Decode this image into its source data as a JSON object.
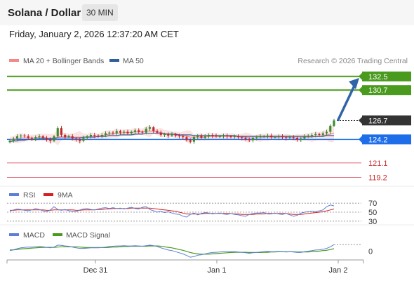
{
  "header": {
    "title": "Solana / Dollar",
    "interval": "30 MIN"
  },
  "timestamp": "Friday, January 2, 2026 12:37:20 AM CET",
  "legend": {
    "ma20": {
      "label": "MA 20 + Bollinger Bands",
      "color": "#f08a8a"
    },
    "ma50": {
      "label": "MA 50",
      "color": "#2f5e9e"
    }
  },
  "copyright": "Research © 2026 Trading Central",
  "colors": {
    "up": "#3a8a30",
    "down": "#c0282c",
    "resistance": "#4a9a1e",
    "support": "#e06b7a",
    "pivot": "#1d6ee8",
    "current": "#333333",
    "arrow": "#3064a8",
    "rsi": "#5b7fd6",
    "rsi_ma": "#d62020",
    "macd": "#5b7fd6",
    "macd_signal": "#4a9a1e"
  },
  "chart_data": [
    {
      "type": "candlestick",
      "ylim": [
        118.5,
        133.5
      ],
      "x_axis": {
        "labels": [
          "Dec 31",
          "Jan 1",
          "Jan 2"
        ]
      },
      "levels": {
        "resistance": [
          132.5,
          130.7
        ],
        "pivot": 124.2,
        "current": 126.7,
        "support": [
          121.1,
          119.2
        ]
      },
      "level_labels": {
        "r1": "132.5",
        "r2": "130.7",
        "pivot": "124.2",
        "current": "126.7",
        "s1": "121.1",
        "s2": "119.2"
      },
      "arrow_target": 132.3,
      "close": [
        124.0,
        124.3,
        124.6,
        124.7,
        124.6,
        124.4,
        124.3,
        124.5,
        124.6,
        124.4,
        124.2,
        124.0,
        124.6,
        125.7,
        124.8,
        124.5,
        124.6,
        124.3,
        124.2,
        124.0,
        124.4,
        124.6,
        124.8,
        124.7,
        124.6,
        124.8,
        125.0,
        125.1,
        125.0,
        125.3,
        125.1,
        125.2,
        125.0,
        125.2,
        125.4,
        125.2,
        125.1,
        125.6,
        125.8,
        125.3,
        125.1,
        124.8,
        124.9,
        124.7,
        124.9,
        124.7,
        124.6,
        124.5,
        124.1,
        123.9,
        124.5,
        124.7,
        124.4,
        124.6,
        124.8,
        124.7,
        124.6,
        124.6,
        124.7,
        124.6,
        124.5,
        124.6,
        124.5,
        124.4,
        124.2,
        124.1,
        124.4,
        124.5,
        124.6,
        124.6,
        124.7,
        124.5,
        124.5,
        124.6,
        124.5,
        124.4,
        124.5,
        124.4,
        124.2,
        124.3,
        124.6,
        124.7,
        124.8,
        124.9,
        124.8,
        125.0,
        125.2,
        126.0,
        126.7
      ],
      "ma20": [
        124.1,
        124.2,
        124.3,
        124.4,
        124.4,
        124.4,
        124.4,
        124.4,
        124.5,
        124.5,
        124.4,
        124.3,
        124.4,
        124.5,
        124.6,
        124.6,
        124.6,
        124.5,
        124.5,
        124.5,
        124.5,
        124.5,
        124.6,
        124.6,
        124.6,
        124.7,
        124.8,
        124.9,
        124.9,
        125.0,
        125.0,
        125.1,
        125.1,
        125.1,
        125.2,
        125.2,
        125.2,
        125.3,
        125.3,
        125.3,
        125.2,
        125.1,
        125.0,
        124.9,
        124.9,
        124.8,
        124.7,
        124.7,
        124.6,
        124.5,
        124.5,
        124.5,
        124.5,
        124.5,
        124.6,
        124.6,
        124.6,
        124.6,
        124.6,
        124.6,
        124.6,
        124.6,
        124.5,
        124.5,
        124.5,
        124.4,
        124.4,
        124.4,
        124.4,
        124.5,
        124.5,
        124.5,
        124.5,
        124.5,
        124.5,
        124.5,
        124.5,
        124.4,
        124.4,
        124.4,
        124.5,
        124.5,
        124.5,
        124.6,
        124.6,
        124.7,
        124.8,
        124.9,
        125.0
      ],
      "ma50": [
        123.9,
        124.0,
        124.0,
        124.1,
        124.1,
        124.2,
        124.2,
        124.2,
        124.3,
        124.3,
        124.3,
        124.3,
        124.3,
        124.4,
        124.4,
        124.4,
        124.4,
        124.4,
        124.4,
        124.4,
        124.5,
        124.5,
        124.5,
        124.5,
        124.6,
        124.6,
        124.6,
        124.7,
        124.7,
        124.7,
        124.8,
        124.8,
        124.8,
        124.8,
        124.9,
        124.9,
        124.9,
        125.0,
        125.0,
        125.0,
        125.0,
        125.0,
        124.9,
        124.9,
        124.9,
        124.9,
        124.8,
        124.8,
        124.8,
        124.8,
        124.7,
        124.7,
        124.7,
        124.7,
        124.7,
        124.7,
        124.7,
        124.7,
        124.7,
        124.7,
        124.7,
        124.7,
        124.6,
        124.6,
        124.6,
        124.6,
        124.6,
        124.6,
        124.6,
        124.6,
        124.6,
        124.6,
        124.6,
        124.6,
        124.6,
        124.6,
        124.6,
        124.6,
        124.6,
        124.6,
        124.6,
        124.6,
        124.6,
        124.6,
        124.6,
        124.6,
        124.7,
        124.7,
        124.7
      ]
    },
    {
      "type": "line",
      "title": "RSI",
      "legend": [
        "RSI",
        "9MA"
      ],
      "ylim": [
        25,
        75
      ],
      "levels": [
        70,
        50,
        30
      ],
      "level_labels": [
        "70",
        "50",
        "30"
      ],
      "series": [
        {
          "name": "RSI",
          "values": [
            52,
            55,
            57,
            56,
            54,
            53,
            55,
            58,
            56,
            53,
            51,
            55,
            62,
            56,
            54,
            56,
            53,
            52,
            51,
            55,
            57,
            58,
            56,
            55,
            57,
            59,
            60,
            58,
            60,
            58,
            59,
            57,
            59,
            61,
            58,
            57,
            61,
            62,
            56,
            53,
            50,
            52,
            49,
            51,
            48,
            46,
            45,
            41,
            39,
            45,
            48,
            44,
            47,
            49,
            48,
            46,
            47,
            48,
            46,
            45,
            47,
            45,
            44,
            42,
            41,
            45,
            47,
            48,
            48,
            49,
            46,
            46,
            48,
            46,
            45,
            47,
            44,
            41,
            43,
            48,
            50,
            51,
            52,
            51,
            53,
            55,
            62,
            66,
            64
          ]
        },
        {
          "name": "9MA",
          "values": [
            54,
            54,
            55,
            55,
            55,
            55,
            55,
            55,
            55,
            55,
            54,
            54,
            55,
            55,
            55,
            55,
            55,
            55,
            54,
            54,
            55,
            55,
            55,
            55,
            56,
            56,
            57,
            57,
            58,
            58,
            58,
            58,
            58,
            59,
            59,
            59,
            59,
            59,
            59,
            58,
            57,
            56,
            55,
            54,
            53,
            52,
            50,
            48,
            46,
            46,
            46,
            46,
            46,
            47,
            47,
            47,
            47,
            47,
            47,
            47,
            47,
            46,
            46,
            45,
            45,
            45,
            45,
            46,
            46,
            46,
            47,
            47,
            47,
            47,
            47,
            47,
            46,
            45,
            45,
            45,
            46,
            47,
            48,
            49,
            50,
            51,
            53,
            55,
            57
          ]
        }
      ]
    },
    {
      "type": "line",
      "title": "MACD",
      "legend": [
        "MACD",
        "MACD Signal"
      ],
      "ylim": [
        -0.45,
        0.45
      ],
      "levels": [
        0
      ],
      "level_labels": [
        "0"
      ],
      "series": [
        {
          "name": "MACD",
          "values": [
            0.02,
            0.05,
            0.09,
            0.12,
            0.14,
            0.15,
            0.15,
            0.16,
            0.17,
            0.16,
            0.14,
            0.12,
            0.15,
            0.22,
            0.21,
            0.19,
            0.18,
            0.15,
            0.12,
            0.1,
            0.1,
            0.11,
            0.12,
            0.12,
            0.12,
            0.13,
            0.15,
            0.17,
            0.18,
            0.19,
            0.19,
            0.2,
            0.19,
            0.19,
            0.2,
            0.19,
            0.18,
            0.2,
            0.22,
            0.2,
            0.17,
            0.12,
            0.08,
            0.04,
            0.02,
            -0.02,
            -0.06,
            -0.1,
            -0.16,
            -0.22,
            -0.2,
            -0.15,
            -0.13,
            -0.1,
            -0.07,
            -0.05,
            -0.04,
            -0.03,
            -0.02,
            -0.02,
            -0.02,
            -0.02,
            -0.03,
            -0.04,
            -0.06,
            -0.08,
            -0.06,
            -0.05,
            -0.03,
            -0.02,
            -0.01,
            -0.02,
            -0.02,
            -0.01,
            -0.02,
            -0.03,
            -0.02,
            -0.03,
            -0.05,
            -0.05,
            -0.02,
            0.0,
            0.02,
            0.04,
            0.05,
            0.07,
            0.1,
            0.16,
            0.24
          ]
        },
        {
          "name": "MACD Signal",
          "values": [
            0.04,
            0.05,
            0.06,
            0.08,
            0.09,
            0.1,
            0.11,
            0.12,
            0.13,
            0.14,
            0.14,
            0.14,
            0.14,
            0.15,
            0.16,
            0.16,
            0.16,
            0.16,
            0.16,
            0.15,
            0.14,
            0.13,
            0.13,
            0.13,
            0.13,
            0.13,
            0.13,
            0.14,
            0.15,
            0.15,
            0.16,
            0.17,
            0.17,
            0.18,
            0.18,
            0.18,
            0.18,
            0.18,
            0.19,
            0.19,
            0.19,
            0.18,
            0.16,
            0.14,
            0.12,
            0.09,
            0.06,
            0.03,
            -0.01,
            -0.05,
            -0.08,
            -0.1,
            -0.11,
            -0.11,
            -0.11,
            -0.1,
            -0.09,
            -0.08,
            -0.07,
            -0.06,
            -0.05,
            -0.04,
            -0.04,
            -0.04,
            -0.04,
            -0.05,
            -0.05,
            -0.05,
            -0.05,
            -0.04,
            -0.04,
            -0.03,
            -0.03,
            -0.02,
            -0.02,
            -0.02,
            -0.02,
            -0.02,
            -0.03,
            -0.03,
            -0.03,
            -0.03,
            -0.02,
            -0.01,
            0.0,
            0.02,
            0.03,
            0.06,
            0.09
          ]
        }
      ]
    }
  ]
}
